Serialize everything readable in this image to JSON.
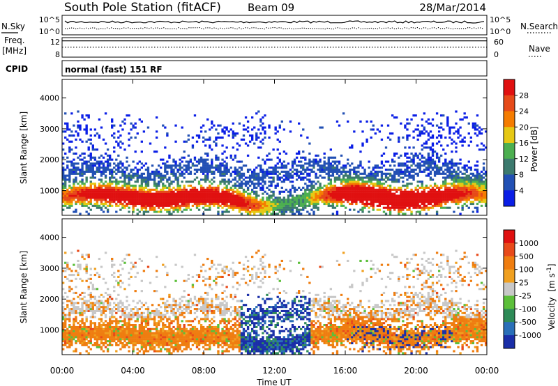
{
  "header": {
    "station": "South Pole Station (fitACF)",
    "beam": "Beam 09",
    "date": "28/Mar/2014"
  },
  "sky_panel": {
    "left_label": "N.Sky",
    "right_label": "N.Search",
    "left_ticks": [
      "10^5",
      "10^0"
    ],
    "right_ticks": [
      "10^5",
      "10^0"
    ]
  },
  "freq_panel": {
    "left_label_1": "Freq.",
    "left_label_2": "[MHz]",
    "right_label": "Nave",
    "left_ticks": [
      "12",
      "8"
    ],
    "right_ticks": [
      "60",
      "0"
    ],
    "freq_value_mhz": 11.9,
    "nave_value": 36
  },
  "cpid": {
    "label": "CPID",
    "value": "normal (fast) 151 RF"
  },
  "chart_data": [
    {
      "type": "heatmap",
      "variable": "power",
      "ylabel": "Slant Range [km]",
      "ylim": [
        200,
        4600
      ],
      "y_ticks": [
        "1000",
        "2000",
        "3000",
        "4000"
      ],
      "colorbar_label": "Power [dB]",
      "colorbar_ticks": [
        "4",
        "8",
        "12",
        "16",
        "20",
        "24",
        "28"
      ],
      "colors": [
        "#0a1ee6",
        "#2250b4",
        "#3c7a6e",
        "#4caf50",
        "#e6c814",
        "#f57c00",
        "#e64a19",
        "#e01010"
      ]
    },
    {
      "type": "heatmap",
      "variable": "velocity",
      "ylabel": "Slant Range [km]",
      "ylim": [
        200,
        4600
      ],
      "y_ticks": [
        "1000",
        "2000",
        "3000",
        "4000"
      ],
      "xlabel": "Time UT",
      "x_ticks": [
        "00:00",
        "04:00",
        "08:00",
        "12:00",
        "16:00",
        "20:00",
        "00:00"
      ],
      "colorbar_label_main": "Velocity",
      "colorbar_label_units": "[m s",
      "colorbar_label_exp": "-1",
      "colorbar_label_close": "]",
      "colorbar_ticks": [
        "1000",
        "500",
        "100",
        "25",
        "-25",
        "-100",
        "-500",
        "-1000"
      ],
      "colors": [
        "#1a2ea8",
        "#2a6fb8",
        "#2e8b57",
        "#5cbf3a",
        "#c8c8c8",
        "#f0a020",
        "#ef7d10",
        "#e84a1a",
        "#e01010"
      ]
    }
  ]
}
